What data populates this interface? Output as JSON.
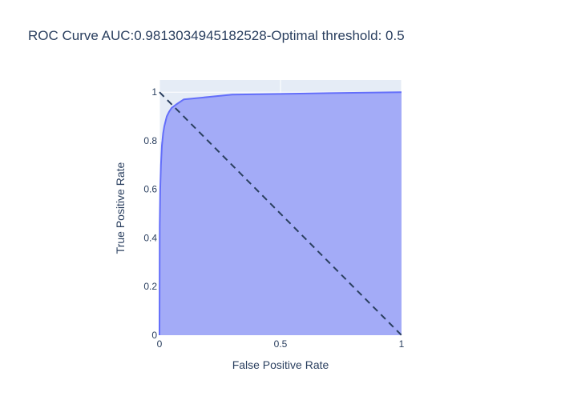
{
  "chart_data": {
    "type": "area",
    "title": "ROC Curve AUC:0.9813034945182528-Optimal threshold: 0.5",
    "xlabel": "False Positive Rate",
    "ylabel": "True Positive Rate",
    "xlim": [
      0,
      1
    ],
    "ylim": [
      0,
      1.05
    ],
    "grid": true,
    "legend": "none",
    "x_ticks": [
      {
        "value": 0,
        "label": "0"
      },
      {
        "value": 0.5,
        "label": "0.5"
      },
      {
        "value": 1,
        "label": "1"
      }
    ],
    "y_ticks": [
      {
        "value": 0,
        "label": "0"
      },
      {
        "value": 0.2,
        "label": "0.2"
      },
      {
        "value": 0.4,
        "label": "0.4"
      },
      {
        "value": 0.6,
        "label": "0.6"
      },
      {
        "value": 0.8,
        "label": "0.8"
      },
      {
        "value": 1,
        "label": "1"
      }
    ],
    "series": [
      {
        "kind": "roc-curve",
        "color": "#636efa",
        "fill_color": "#a3abf7",
        "x": [
          0,
          0.001,
          0.003,
          0.006,
          0.01,
          0.015,
          0.02,
          0.03,
          0.04,
          0.05,
          0.07,
          0.1,
          0.2,
          0.3,
          0.5,
          0.7,
          1.0
        ],
        "y": [
          0,
          0.45,
          0.6,
          0.7,
          0.78,
          0.83,
          0.86,
          0.9,
          0.92,
          0.935,
          0.95,
          0.97,
          0.98,
          0.99,
          0.993,
          0.996,
          1.0
        ]
      },
      {
        "kind": "reference-diagonal",
        "color": "#2a3f5f",
        "dash": "dashed",
        "x": [
          0,
          1
        ],
        "y": [
          1,
          0
        ]
      }
    ]
  }
}
